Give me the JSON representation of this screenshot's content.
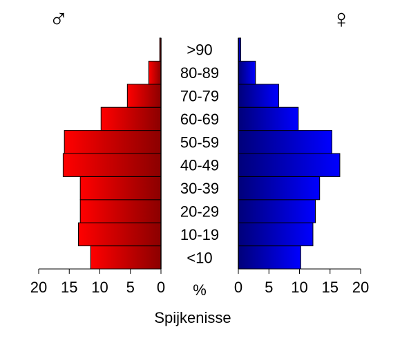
{
  "chart_data": {
    "type": "bar",
    "orientation": "horizontal-pyramid",
    "title": "",
    "xlabel": "Spijkenisse",
    "center_axis_label": "%",
    "categories": [
      "<10",
      "10-19",
      "20-29",
      "30-39",
      "40-49",
      "50-59",
      "60-69",
      "70-79",
      "80-89",
      ">90"
    ],
    "male_symbol": "♂",
    "female_symbol": "♀",
    "xlim": [
      0,
      20
    ],
    "ticks": [
      "20",
      "15",
      "10",
      "5",
      "0"
    ],
    "ticks_right": [
      "0",
      "5",
      "10",
      "15",
      "20"
    ],
    "series": [
      {
        "side": "left",
        "values": [
          11.5,
          13.5,
          13.2,
          13.2,
          16.0,
          15.8,
          9.8,
          5.5,
          2.0,
          0.2
        ]
      },
      {
        "side": "right",
        "values": [
          10.2,
          12.2,
          12.6,
          13.3,
          16.6,
          15.3,
          9.8,
          6.6,
          2.8,
          0.4
        ]
      }
    ],
    "colors": {
      "male_light": "#ff0000",
      "male_dark": "#8b0000",
      "female_light": "#0000ff",
      "female_dark": "#00007a"
    },
    "grid": false,
    "legend": "none"
  }
}
